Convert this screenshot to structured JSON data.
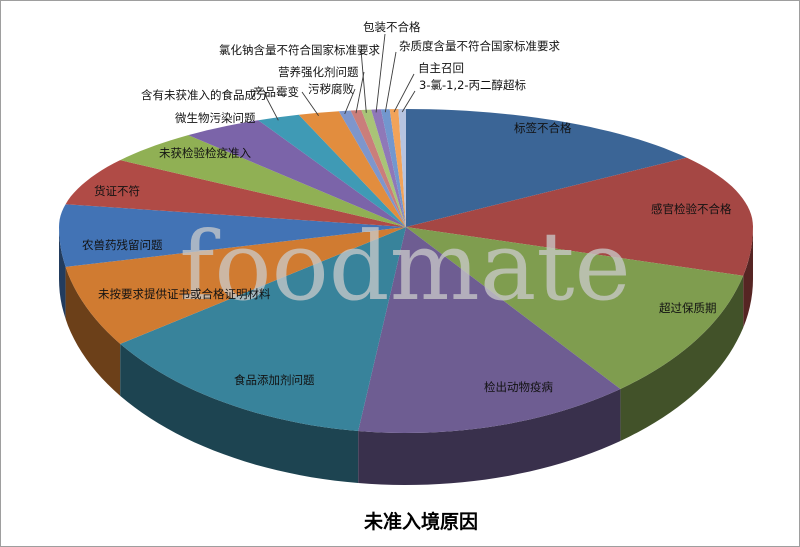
{
  "chart_data": {
    "type": "pie",
    "style": "3d-pie",
    "title": "未准入境原因",
    "watermark": "foodmate",
    "legend_position": "none",
    "background_color": "#ffffff",
    "border_color": "#9e9e9e",
    "values_unit": "percent-share-estimated-from-angles",
    "slices": [
      {
        "label": "标签不合格",
        "value": 15.0,
        "color": "#3B6596"
      },
      {
        "label": "感官检验不合格",
        "value": 13.8,
        "color": "#A54744"
      },
      {
        "label": "超过保质期",
        "value": 10.6,
        "color": "#7F9D4F"
      },
      {
        "label": "检出动物疫病",
        "value": 12.8,
        "color": "#6E5D92"
      },
      {
        "label": "食品添加剂问题",
        "value": 13.2,
        "color": "#38839B"
      },
      {
        "label": "未按要求提供证书或合格证明材料",
        "value": 6.5,
        "color": "#D07B31"
      },
      {
        "label": "农兽药残留问题",
        "value": 6.2,
        "color": "#4273B5"
      },
      {
        "label": "货证不符",
        "value": 6.5,
        "color": "#B04B46"
      },
      {
        "label": "未获检验检疫准入",
        "value": 4.6,
        "color": "#90B054"
      },
      {
        "label": "微生物污染问题",
        "value": 3.8,
        "color": "#7B64A9"
      },
      {
        "label": "含有未获准入的食品成分",
        "value": 2.0,
        "color": "#3F9AB5"
      },
      {
        "label": "产品霉变",
        "value": 1.9,
        "color": "#E28D3E"
      },
      {
        "label": "污秽腐败",
        "value": 0.55,
        "color": "#7E96CC"
      },
      {
        "label": "营养强化剂问题",
        "value": 0.5,
        "color": "#CA7E7B"
      },
      {
        "label": "氯化钠含量不符合国家标准要求",
        "value": 0.45,
        "color": "#A9C477"
      },
      {
        "label": "包装不合格",
        "value": 0.45,
        "color": "#8F78B8"
      },
      {
        "label": "杂质度含量不符合国家标准要求",
        "value": 0.4,
        "color": "#7297CE"
      },
      {
        "label": "自主召回",
        "value": 0.4,
        "color": "#F2A359"
      },
      {
        "label": "3-氯-1,2-丙二醇超标",
        "value": 0.35,
        "color": "#B7C4E0"
      }
    ]
  }
}
